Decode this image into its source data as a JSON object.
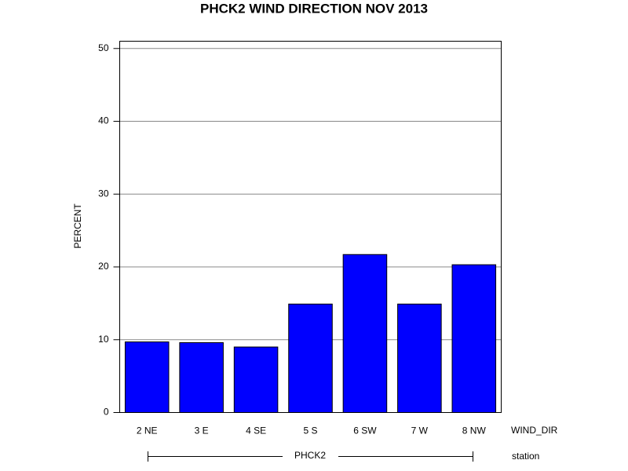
{
  "chart_data": {
    "type": "bar",
    "title": "PHCK2 WIND DIRECTION NOV 2013",
    "y_label": "PERCENT",
    "x_label": "WIND_DIR",
    "group_label": "PHCK2",
    "group_axis_label": "station",
    "categories": [
      "2 NE",
      "3 E",
      "4 SE",
      "5 S",
      "6 SW",
      "7 W",
      "8 NW"
    ],
    "values": [
      9.7,
      9.6,
      9.0,
      14.9,
      21.7,
      14.9,
      20.3
    ],
    "color": "#0000ff",
    "ylim": [
      0,
      51
    ],
    "yticks": [
      0,
      10,
      20,
      30,
      40,
      50
    ],
    "grid": true
  }
}
